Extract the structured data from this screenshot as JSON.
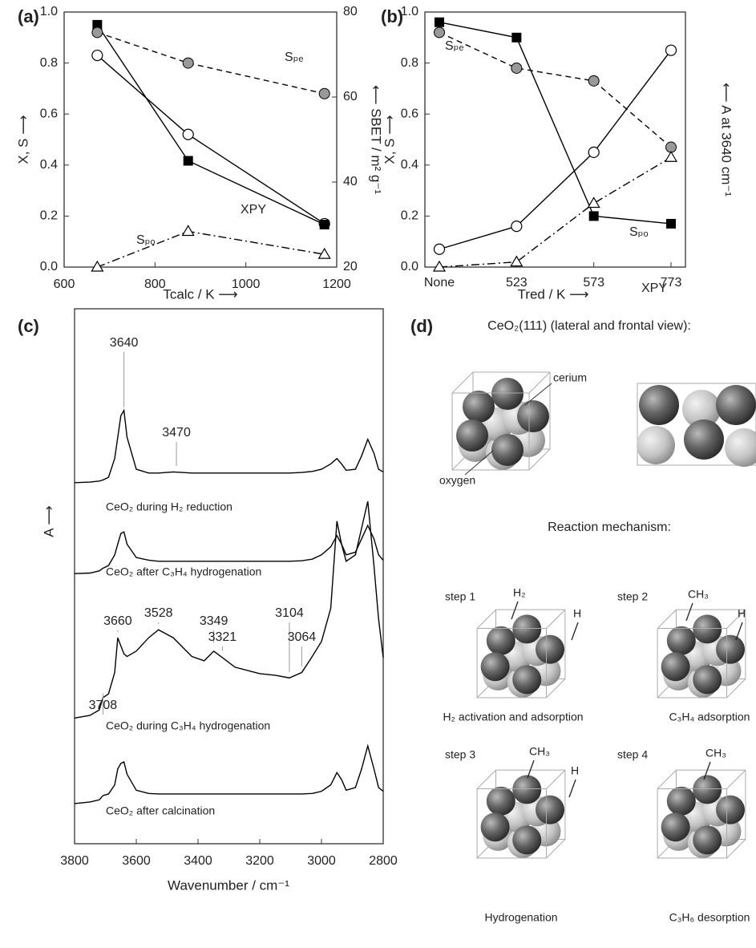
{
  "chart_data": [
    {
      "panel": "(a)",
      "type": "line",
      "xlabel": "Tcalc / K ⟶",
      "ylabel": "X, S ⟶",
      "y2label": "⟵ SBET / m² g⁻¹",
      "x": [
        673,
        873,
        1173
      ],
      "xlim": [
        600,
        1200
      ],
      "xticks": [
        600,
        800,
        1000,
        1200
      ],
      "ylim": [
        0,
        1
      ],
      "yticks": [
        {
          "value": 0,
          "label": "0.0"
        },
        0.2,
        0.4,
        0.6,
        0.8,
        {
          "value": 1,
          "label": "1.0"
        }
      ],
      "y2lim": [
        20,
        80
      ],
      "y2ticks": [
        20,
        40,
        60,
        80
      ],
      "series": [
        {
          "name": "XPY",
          "color": "#000000",
          "marker": "circle-open",
          "line": "solid",
          "values": [
            0.83,
            0.52,
            0.17
          ]
        },
        {
          "color": "#000000",
          "marker": "square",
          "line": "solid",
          "axis": "y2",
          "values": [
            77,
            45,
            30
          ]
        },
        {
          "name": "Sₚₑ",
          "color": "#000000",
          "marker": "circle-gray",
          "line": "dashed",
          "values": [
            0.92,
            0.8,
            0.68
          ]
        },
        {
          "name": "Sₚₒ",
          "color": "#000000",
          "marker": "triangle-open",
          "line": "dashdot",
          "values": [
            0.0,
            0.14,
            0.05
          ]
        }
      ]
    },
    {
      "panel": "(b)",
      "type": "line",
      "xlabel": "Tred / K ⟶",
      "ylabel": "X, S ⟶",
      "y2label": "⟵ A at 3640 cm⁻¹",
      "categories": [
        "None",
        "523",
        "573",
        "773"
      ],
      "ylim": [
        0,
        1
      ],
      "yticks": [
        {
          "value": 0,
          "label": "0.0"
        },
        0.2,
        0.4,
        0.6,
        0.8,
        {
          "value": 1,
          "label": "1.0"
        }
      ],
      "series": [
        {
          "name": "XPY",
          "color": "#000000",
          "marker": "square",
          "line": "solid",
          "values": [
            0.96,
            0.9,
            0.2,
            0.17
          ]
        },
        {
          "color": "#000000",
          "marker": "circle-open",
          "line": "solid",
          "values": [
            0.07,
            0.16,
            0.45,
            0.85
          ]
        },
        {
          "name": "Sₚₑ",
          "color": "#000000",
          "marker": "circle-gray",
          "line": "dashed",
          "values": [
            0.92,
            0.78,
            0.73,
            0.47
          ]
        },
        {
          "name": "Sₚₒ",
          "color": "#000000",
          "marker": "triangle-open",
          "line": "dashdot",
          "values": [
            0.0,
            0.02,
            0.25,
            0.43
          ]
        }
      ]
    },
    {
      "panel": "(c)",
      "type": "line",
      "xlabel": "Wavenumber / cm⁻¹",
      "ylabel": "A ⟶",
      "x": [
        3800,
        3750,
        3720,
        3708,
        3690,
        3670,
        3660,
        3650,
        3640,
        3630,
        3600,
        3560,
        3528,
        3480,
        3420,
        3380,
        3349,
        3321,
        3280,
        3200,
        3150,
        3104,
        3064,
        3030,
        3000,
        2970,
        2950,
        2935,
        2920,
        2890,
        2870,
        2850,
        2830,
        2815,
        2800
      ],
      "xlim": [
        3800,
        2800
      ],
      "xticks": [
        3800,
        3600,
        3400,
        3200,
        3000,
        2800
      ],
      "ylim": [
        0,
        100
      ],
      "peak_labels": [
        3640,
        3470,
        3660,
        3528,
        3349,
        3321,
        3104,
        3064,
        3708
      ],
      "series": [
        {
          "name": "CeO₂ during H₂ reduction",
          "color": "#000000",
          "line": "solid",
          "values": [
            67.5,
            67.6,
            67.8,
            68,
            68.5,
            72,
            76,
            80,
            81,
            76,
            70,
            69.3,
            69.3,
            69.5,
            69.3,
            69.3,
            69.3,
            69.3,
            69.3,
            69.3,
            69.3,
            69.3,
            69.4,
            69.6,
            70,
            71,
            72,
            71,
            69.8,
            70,
            72.5,
            75.6,
            73,
            70,
            69.5
          ]
        },
        {
          "name": "CeO₂ after C₃H₄ hydrogenation",
          "color": "#000000",
          "line": "solid",
          "values": [
            50.5,
            50.6,
            51,
            51.5,
            52,
            54,
            56,
            58,
            58.3,
            56,
            53.5,
            53,
            52.8,
            52.8,
            52.8,
            52.8,
            52.8,
            52.8,
            52.8,
            52.8,
            52.8,
            52.8,
            52.9,
            53.2,
            54,
            55.5,
            57.6,
            56,
            54,
            54.5,
            57,
            59.5,
            57,
            54,
            53
          ]
        },
        {
          "name": "CeO₂ during C₃H₄ hydrogenation",
          "color": "#000000",
          "line": "solid",
          "values": [
            23.5,
            24,
            25,
            27.3,
            28,
            32,
            38.5,
            37,
            35.5,
            35,
            36,
            38.5,
            40,
            38.5,
            35,
            34.2,
            36,
            34.8,
            33,
            31.8,
            31.5,
            31,
            32,
            35,
            37.8,
            44,
            60.3,
            56,
            52.8,
            54,
            59,
            64,
            52,
            42,
            34.8
          ]
        },
        {
          "name": "CeO₂ after calcination",
          "color": "#000000",
          "line": "solid",
          "values": [
            7.5,
            7.8,
            8.2,
            9,
            9.3,
            11,
            14,
            15,
            15.3,
            13,
            10,
            9.4,
            9.3,
            9.3,
            9.3,
            9.3,
            9.3,
            9.3,
            9.3,
            9.3,
            9.3,
            9.3,
            9.3,
            9.4,
            9.8,
            11,
            13.3,
            12,
            10,
            10.5,
            14,
            18.3,
            14,
            10.5,
            9.8
          ]
        }
      ]
    }
  ],
  "diagram": {
    "panel": "(d)",
    "title": "CeO₂(111) (lateral and frontal view):",
    "labels": [
      "cerium",
      "oxygen"
    ],
    "mechanism_title": "Reaction mechanism:",
    "steps": [
      {
        "label": "step 1",
        "species": [
          "H₂",
          "H"
        ],
        "caption": "H₂ activation and adsorption"
      },
      {
        "label": "step 2",
        "species": [
          "CH₃",
          "H"
        ],
        "caption": "C₃H₄ adsorption"
      },
      {
        "label": "step 3",
        "species": [
          "CH₃",
          "H"
        ],
        "caption": "Hydrogenation"
      },
      {
        "label": "step 4",
        "species": [
          "CH₃"
        ],
        "caption": "C₃H₆ desorption"
      }
    ]
  }
}
